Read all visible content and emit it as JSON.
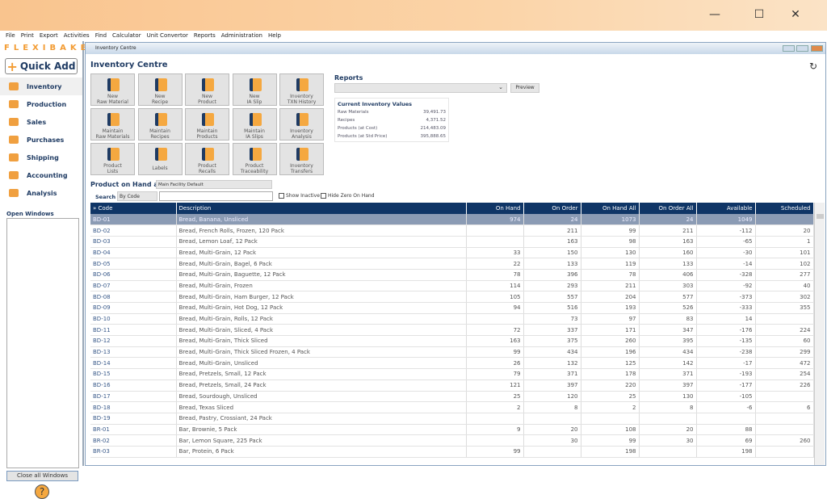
{
  "window_controls": {
    "minimize": "—",
    "maximize": "☐",
    "close": "✕"
  },
  "menu": [
    "File",
    "Print",
    "Export",
    "Activities",
    "Find",
    "Calculator",
    "Unit Convertor",
    "Reports",
    "Administration",
    "Help"
  ],
  "sidebar": {
    "logo": "FLEXIBAKE",
    "quick_add": "Quick Add",
    "items": [
      {
        "label": "Inventory",
        "icon": "inventory-icon"
      },
      {
        "label": "Production",
        "icon": "production-icon"
      },
      {
        "label": "Sales",
        "icon": "sales-icon"
      },
      {
        "label": "Purchases",
        "icon": "cart-icon"
      },
      {
        "label": "Shipping",
        "icon": "truck-icon"
      },
      {
        "label": "Accounting",
        "icon": "accounting-icon"
      },
      {
        "label": "Analysis",
        "icon": "analysis-icon"
      }
    ],
    "open_windows_label": "Open Windows",
    "close_all": "Close all Windows",
    "help": "?"
  },
  "window": {
    "title": "Inventory Centre",
    "heading": "Inventory Centre"
  },
  "tiles": [
    [
      "New",
      "Raw Material"
    ],
    [
      "New",
      "Recipe"
    ],
    [
      "New",
      "Product"
    ],
    [
      "New",
      "IA Slip"
    ],
    [
      "Inventory",
      "TXN History"
    ],
    [
      "Maintain",
      "Raw Materials"
    ],
    [
      "Maintain",
      "Recipes"
    ],
    [
      "Maintain",
      "Products"
    ],
    [
      "Maintain",
      "IA Slips"
    ],
    [
      "Inventory",
      "Analysis"
    ],
    [
      "Product",
      "Lists"
    ],
    [
      "Labels",
      ""
    ],
    [
      "Product",
      "Recalls"
    ],
    [
      "Product",
      "Traceability"
    ],
    [
      "Inventory",
      "Transfers"
    ]
  ],
  "reports": {
    "label": "Reports",
    "selected": "",
    "preview": "Preview"
  },
  "inventory_values": {
    "title": "Current Inventory Values",
    "rows": [
      [
        "Raw Materials",
        "39,491.73"
      ],
      [
        "Recipes",
        "4,371.52"
      ],
      [
        "Products (at Cost)",
        "214,483.09"
      ],
      [
        "Products (at Std Price)",
        "395,888.65"
      ]
    ]
  },
  "poh": {
    "label": "Product on Hand at",
    "facility": "Main Facility Default",
    "search_label": "Search",
    "search_by": "By Code",
    "search_value": "",
    "show_inactive": "Show Inactive",
    "hide_zero": "Hide Zero On Hand"
  },
  "table": {
    "columns": [
      "» Code",
      "Description",
      "On Hand",
      "On Order",
      "On Hand All",
      "On Order All",
      "Available",
      "Scheduled"
    ],
    "rows": [
      [
        "BD-01",
        "Bread, Banana, Unsliced",
        "974",
        "24",
        "1073",
        "24",
        "1049",
        ""
      ],
      [
        "BD-02",
        "Bread, French Rolls, Frozen, 120 Pack",
        "",
        "211",
        "99",
        "211",
        "-112",
        "20"
      ],
      [
        "BD-03",
        "Bread, Lemon Loaf, 12 Pack",
        "",
        "163",
        "98",
        "163",
        "-65",
        "1"
      ],
      [
        "BD-04",
        "Bread, Multi-Grain, 12 Pack",
        "33",
        "150",
        "130",
        "160",
        "-30",
        "101"
      ],
      [
        "BD-05",
        "Bread, Multi-Grain, Bagel, 6 Pack",
        "22",
        "133",
        "119",
        "133",
        "-14",
        "102"
      ],
      [
        "BD-06",
        "Bread, Multi-Grain, Baguette, 12 Pack",
        "78",
        "396",
        "78",
        "406",
        "-328",
        "277"
      ],
      [
        "BD-07",
        "Bread, Multi-Grain, Frozen",
        "114",
        "293",
        "211",
        "303",
        "-92",
        "40"
      ],
      [
        "BD-08",
        "Bread, Multi-Grain, Ham Burger, 12 Pack",
        "105",
        "557",
        "204",
        "577",
        "-373",
        "302"
      ],
      [
        "BD-09",
        "Bread, Multi-Grain, Hot Dog, 12 Pack",
        "94",
        "516",
        "193",
        "526",
        "-333",
        "355"
      ],
      [
        "BD-10",
        "Bread, Multi-Grain, Rolls, 12 Pack",
        "",
        "73",
        "97",
        "83",
        "14",
        ""
      ],
      [
        "BD-11",
        "Bread, Multi-Grain, Sliced, 4 Pack",
        "72",
        "337",
        "171",
        "347",
        "-176",
        "224"
      ],
      [
        "BD-12",
        "Bread, Multi-Grain, Thick Sliced",
        "163",
        "375",
        "260",
        "395",
        "-135",
        "60"
      ],
      [
        "BD-13",
        "Bread, Multi-Grain, Thick Sliced Frozen, 4 Pack",
        "99",
        "434",
        "196",
        "434",
        "-238",
        "299"
      ],
      [
        "BD-14",
        "Bread, Multi-Grain, Unsliced",
        "26",
        "132",
        "125",
        "142",
        "-17",
        "472"
      ],
      [
        "BD-15",
        "Bread, Pretzels, Small, 12 Pack",
        "79",
        "371",
        "178",
        "371",
        "-193",
        "254"
      ],
      [
        "BD-16",
        "Bread, Pretzels, Small, 24 Pack",
        "121",
        "397",
        "220",
        "397",
        "-177",
        "226"
      ],
      [
        "BD-17",
        "Bread, Sourdough, Unsliced",
        "25",
        "120",
        "25",
        "130",
        "-105",
        ""
      ],
      [
        "BD-18",
        "Bread, Texas Sliced",
        "2",
        "8",
        "2",
        "8",
        "-6",
        "6"
      ],
      [
        "BD-19",
        "Bread, Pastry, Crossiant, 24 Pack",
        "",
        "",
        "",
        "",
        "",
        ""
      ],
      [
        "BR-01",
        "Bar, Brownie, 5 Pack",
        "9",
        "20",
        "108",
        "20",
        "88",
        ""
      ],
      [
        "BR-02",
        "Bar, Lemon Square, 225 Pack",
        "",
        "30",
        "99",
        "30",
        "69",
        "260"
      ],
      [
        "BR-03",
        "Bar, Protein, 6 Pack",
        "99",
        "",
        "198",
        "",
        "198",
        ""
      ]
    ]
  },
  "colors": {
    "accent": "#f39c33",
    "navy": "#0f3566",
    "selected_row": "#8b9bb4"
  }
}
